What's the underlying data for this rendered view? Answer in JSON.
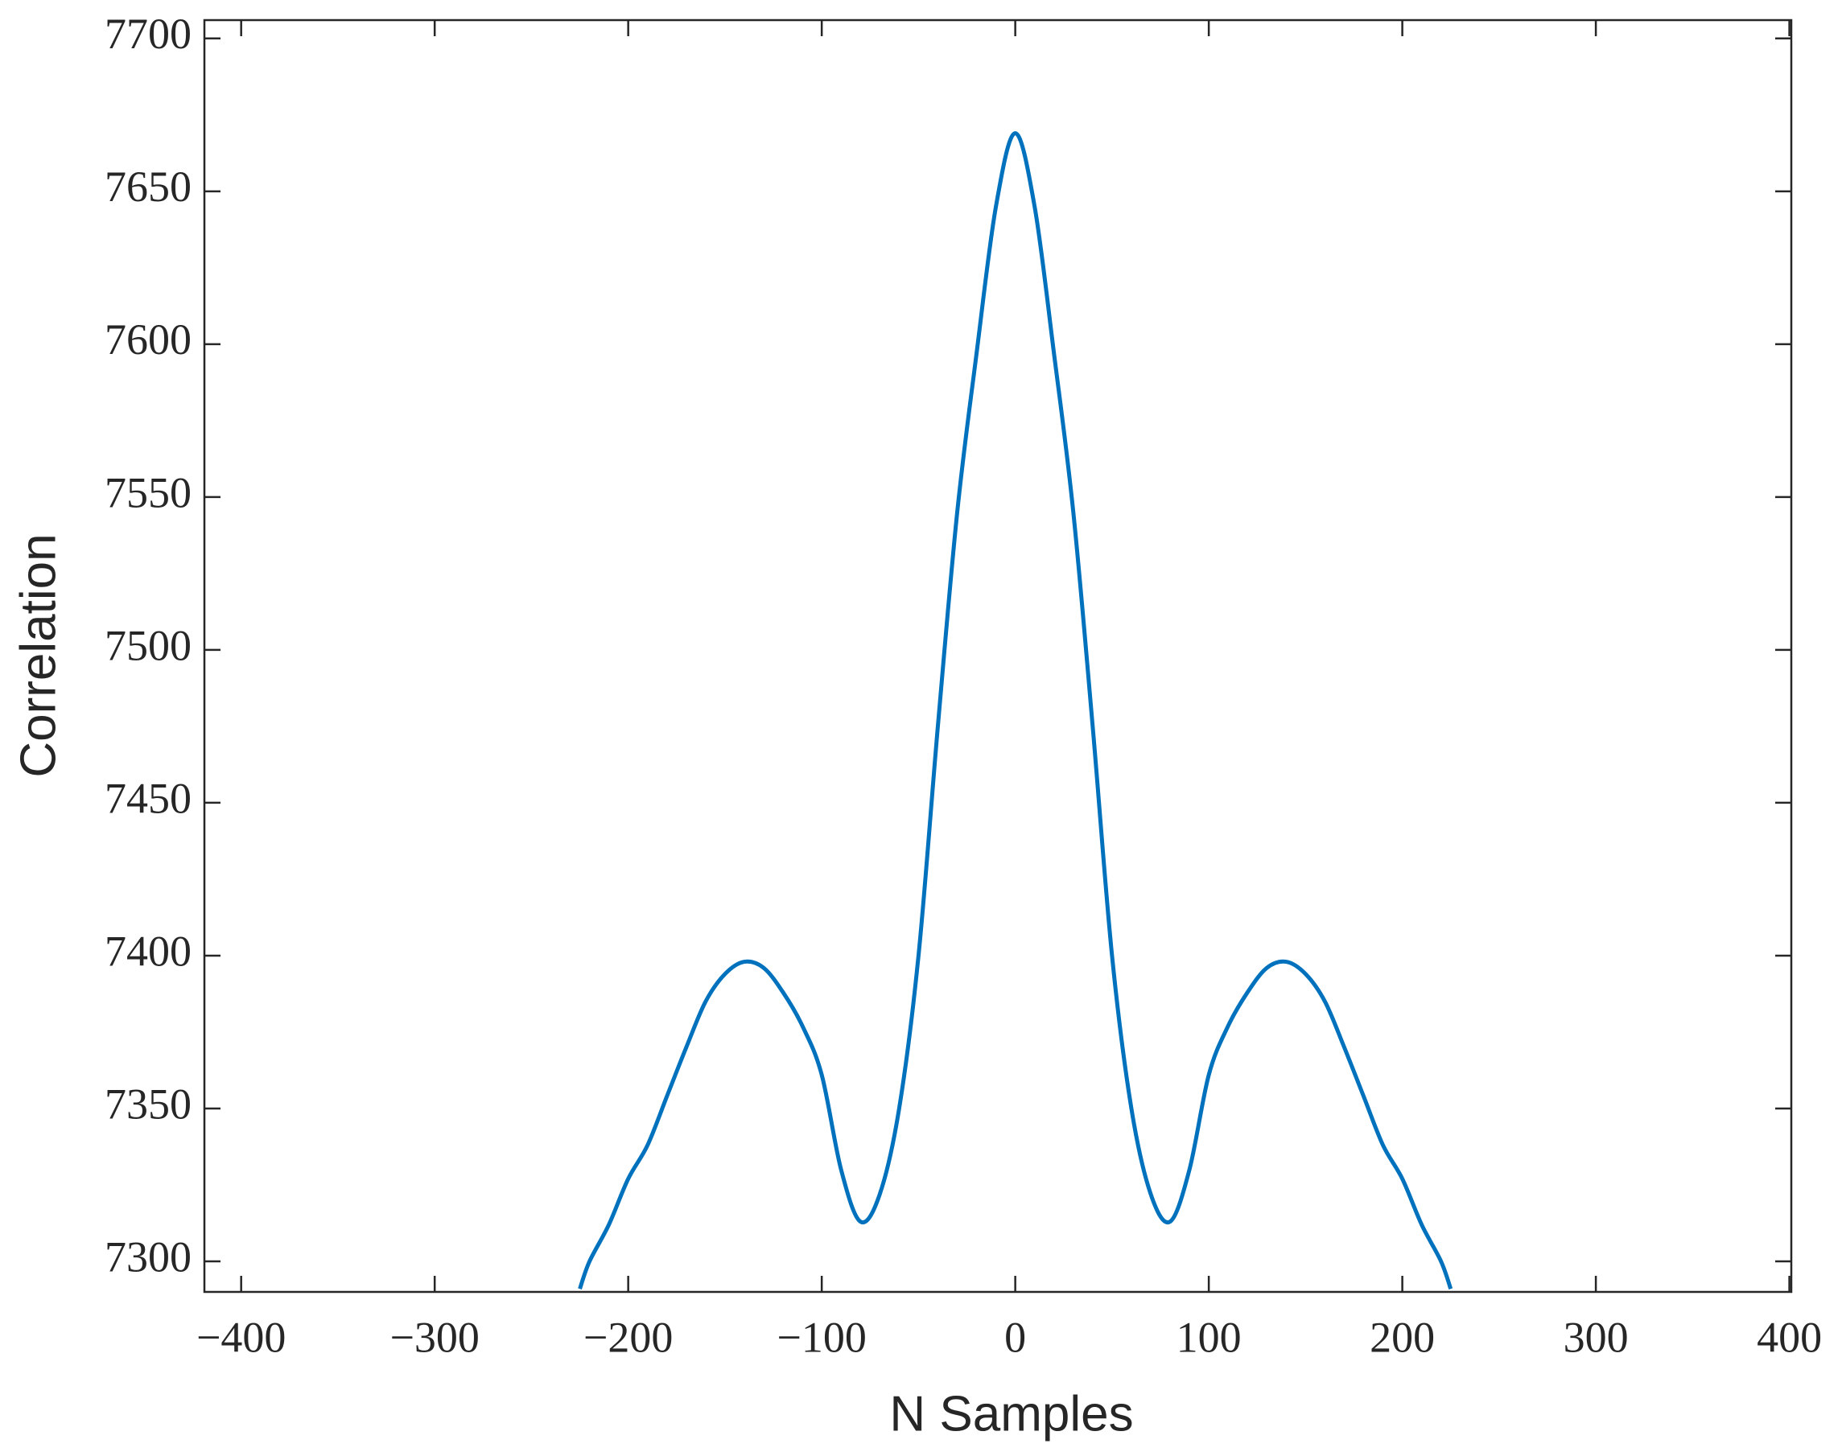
{
  "chart_data": {
    "type": "line",
    "xlabel": "N Samples",
    "ylabel": "Correlation",
    "x": [
      -225,
      -220,
      -210,
      -200,
      -190,
      -180,
      -170,
      -160,
      -150,
      -140,
      -130,
      -120,
      -110,
      -100,
      -90,
      -80,
      -70,
      -60,
      -50,
      -40,
      -30,
      -20,
      -10,
      0,
      10,
      20,
      30,
      40,
      50,
      60,
      70,
      80,
      90,
      100,
      110,
      120,
      130,
      140,
      150,
      160,
      170,
      180,
      190,
      200,
      210,
      220,
      225
    ],
    "series": [
      {
        "name": "Correlation",
        "color": "#0072bd",
        "values": [
          7291,
          7300,
          7312,
          7327,
          7338,
          7354,
          7370,
          7385,
          7394,
          7398,
          7396,
          7388,
          7377,
          7361,
          7330,
          7313,
          7322,
          7350,
          7400,
          7475,
          7545,
          7597,
          7645,
          7669,
          7645,
          7597,
          7545,
          7475,
          7400,
          7350,
          7322,
          7313,
          7330,
          7361,
          7377,
          7388,
          7396,
          7398,
          7394,
          7385,
          7370,
          7354,
          7338,
          7327,
          7312,
          7300,
          7291
        ]
      }
    ],
    "xlim": [
      -419,
      401
    ],
    "ylim": [
      7290,
      7706
    ],
    "xticks": [
      {
        "value": -400,
        "label": "−400"
      },
      {
        "value": -300,
        "label": "−300"
      },
      {
        "value": -200,
        "label": "−200"
      },
      {
        "value": -100,
        "label": "−100"
      },
      0,
      100,
      200,
      300,
      400
    ],
    "yticks": [
      7300,
      7350,
      7400,
      7450,
      7500,
      7550,
      7600,
      7650,
      7700
    ]
  }
}
